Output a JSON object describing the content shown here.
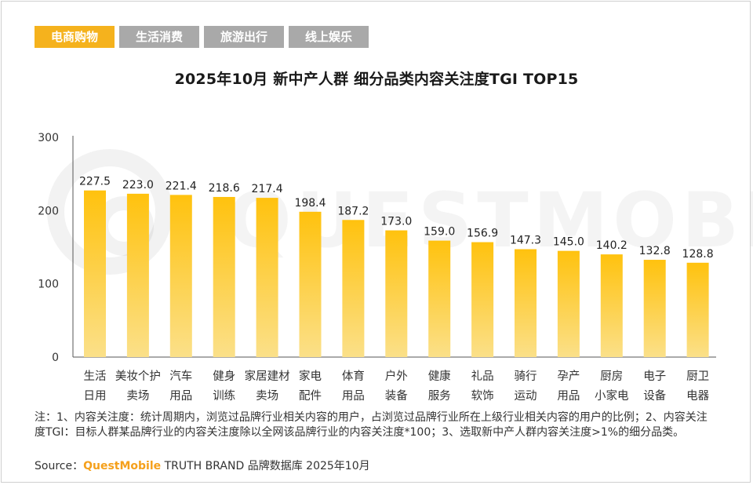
{
  "tabs": [
    {
      "label": "电商购物",
      "active": true
    },
    {
      "label": "生活消费",
      "active": false
    },
    {
      "label": "旅游出行",
      "active": false
    },
    {
      "label": "线上娱乐",
      "active": false
    }
  ],
  "title": "2025年10月 新中产人群 细分品类内容关注度TGI TOP15",
  "notes": "注：1、内容关注度：统计周期内，浏览过品牌行业相关内容的用户，占浏览过品牌行业所在上级行业相关内容的用户的比例；2、内容关注度TGI：目标人群某品牌行业的内容关注度除以全网该品牌行业的内容关注度*100；3、选取新中产人群内容关注度>1%的细分品类。",
  "source": {
    "prefix": "Source：",
    "brand": "QuestMobile",
    "suffix": " TRUTH BRAND 品牌数据库 2025年10月"
  },
  "watermark": "QUESTMOBILE",
  "colors": {
    "accent": "#f5b21d",
    "tab_inactive": "#a9a9a9",
    "bar_top": "#ffc20e",
    "bar_bottom": "#fbe089",
    "brand_text": "#f5a01b"
  },
  "chart_data": {
    "type": "bar",
    "title": "2025年10月 新中产人群 细分品类内容关注度TGI TOP15",
    "categories": [
      [
        "生活",
        "日用"
      ],
      [
        "美妆个护",
        "卖场"
      ],
      [
        "汽车",
        "用品"
      ],
      [
        "健身",
        "训练"
      ],
      [
        "家居建材",
        "卖场"
      ],
      [
        "家电",
        "配件"
      ],
      [
        "体育",
        "用品"
      ],
      [
        "户外",
        "装备"
      ],
      [
        "健康",
        "服务"
      ],
      [
        "礼品",
        "软饰"
      ],
      [
        "骑行",
        "运动"
      ],
      [
        "孕产",
        "用品"
      ],
      [
        "厨房",
        "小家电"
      ],
      [
        "电子",
        "设备"
      ],
      [
        "厨卫",
        "电器"
      ]
    ],
    "values": [
      227.5,
      223.0,
      221.4,
      218.6,
      217.4,
      198.4,
      187.2,
      173.0,
      159.0,
      156.9,
      147.3,
      145.0,
      140.2,
      132.8,
      128.8
    ],
    "value_labels": [
      "227.5",
      "223.0",
      "221.4",
      "218.6",
      "217.4",
      "198.4",
      "187.2",
      "173.0",
      "159.0",
      "156.9",
      "147.3",
      "145.0",
      "140.2",
      "132.8",
      "128.8"
    ],
    "yticks": [
      0,
      100,
      200,
      300
    ],
    "ylim": [
      0,
      300
    ],
    "grid": false,
    "xlabel": "",
    "ylabel": ""
  }
}
